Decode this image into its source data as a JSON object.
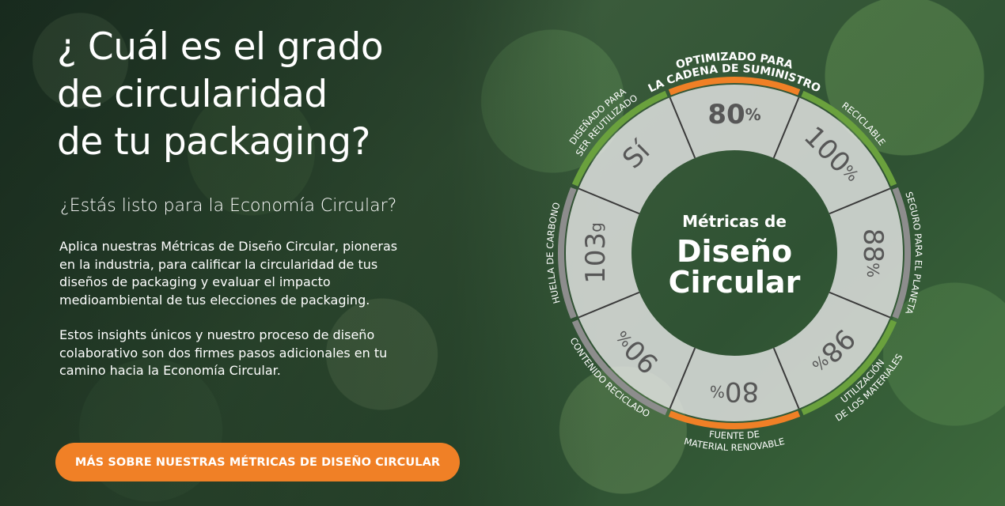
{
  "headline": [
    "¿ Cuál es el grado",
    "de circularidad",
    "de tu packaging?"
  ],
  "subheading": "¿Estás listo para la Economía Circular?",
  "paragraph1": [
    "Aplica nuestras Métricas de Diseño Circular, pioneras",
    "en la industria, para calificar la circularidad de tus",
    "diseños de packaging y evaluar el impacto",
    "medioambiental de tus elecciones de packaging."
  ],
  "paragraph2": [
    "Estos insights únicos y nuestro proceso de diseño",
    "colaborativo son dos firmes pasos adicionales en tu",
    "camino hacia la Economía Circular."
  ],
  "cta_label": "MÁS SOBRE NUESTRAS MÉTRICAS DE DISEÑO CIRCULAR",
  "wheel": {
    "center": {
      "line1": "Métricas de",
      "line2": "Diseño",
      "line3": "Circular"
    },
    "segments": [
      {
        "id": "supply",
        "value": "80",
        "unit": "%",
        "label": [
          "OPTIMIZADO PARA",
          "LA CADENA DE SUMINISTRO"
        ],
        "color": "#f08026"
      },
      {
        "id": "recyclable",
        "value": "100",
        "unit": "%",
        "label": [
          "RECICLABLE"
        ],
        "color": "#6aa13d"
      },
      {
        "id": "planet",
        "value": "88",
        "unit": "%",
        "label": [
          "SEGURO PARA EL PLANETA"
        ],
        "color": "#8d8d8d"
      },
      {
        "id": "materials",
        "value": "98",
        "unit": "%",
        "label": [
          "UTILIZACIÓN",
          "DE LOS MATERIALES"
        ],
        "color": "#6aa13d"
      },
      {
        "id": "renewable",
        "value": "80",
        "unit": "%",
        "label": [
          "FUENTE DE",
          "MATERIAL RENOVABLE"
        ],
        "color": "#f08026"
      },
      {
        "id": "recycled",
        "value": "90",
        "unit": "%",
        "label": [
          "CONTENIDO RECICLADO"
        ],
        "color": "#8d8d8d"
      },
      {
        "id": "carbon",
        "value": "103",
        "unit": "g",
        "label": [
          "HUELLA DE CARBONO"
        ],
        "color": "#8d8d8d"
      },
      {
        "id": "reuse",
        "value": "Sí",
        "unit": "",
        "label": [
          "DISEÑADO PARA",
          "SER REUTILIZADO"
        ],
        "color": "#6aa13d"
      }
    ]
  }
}
